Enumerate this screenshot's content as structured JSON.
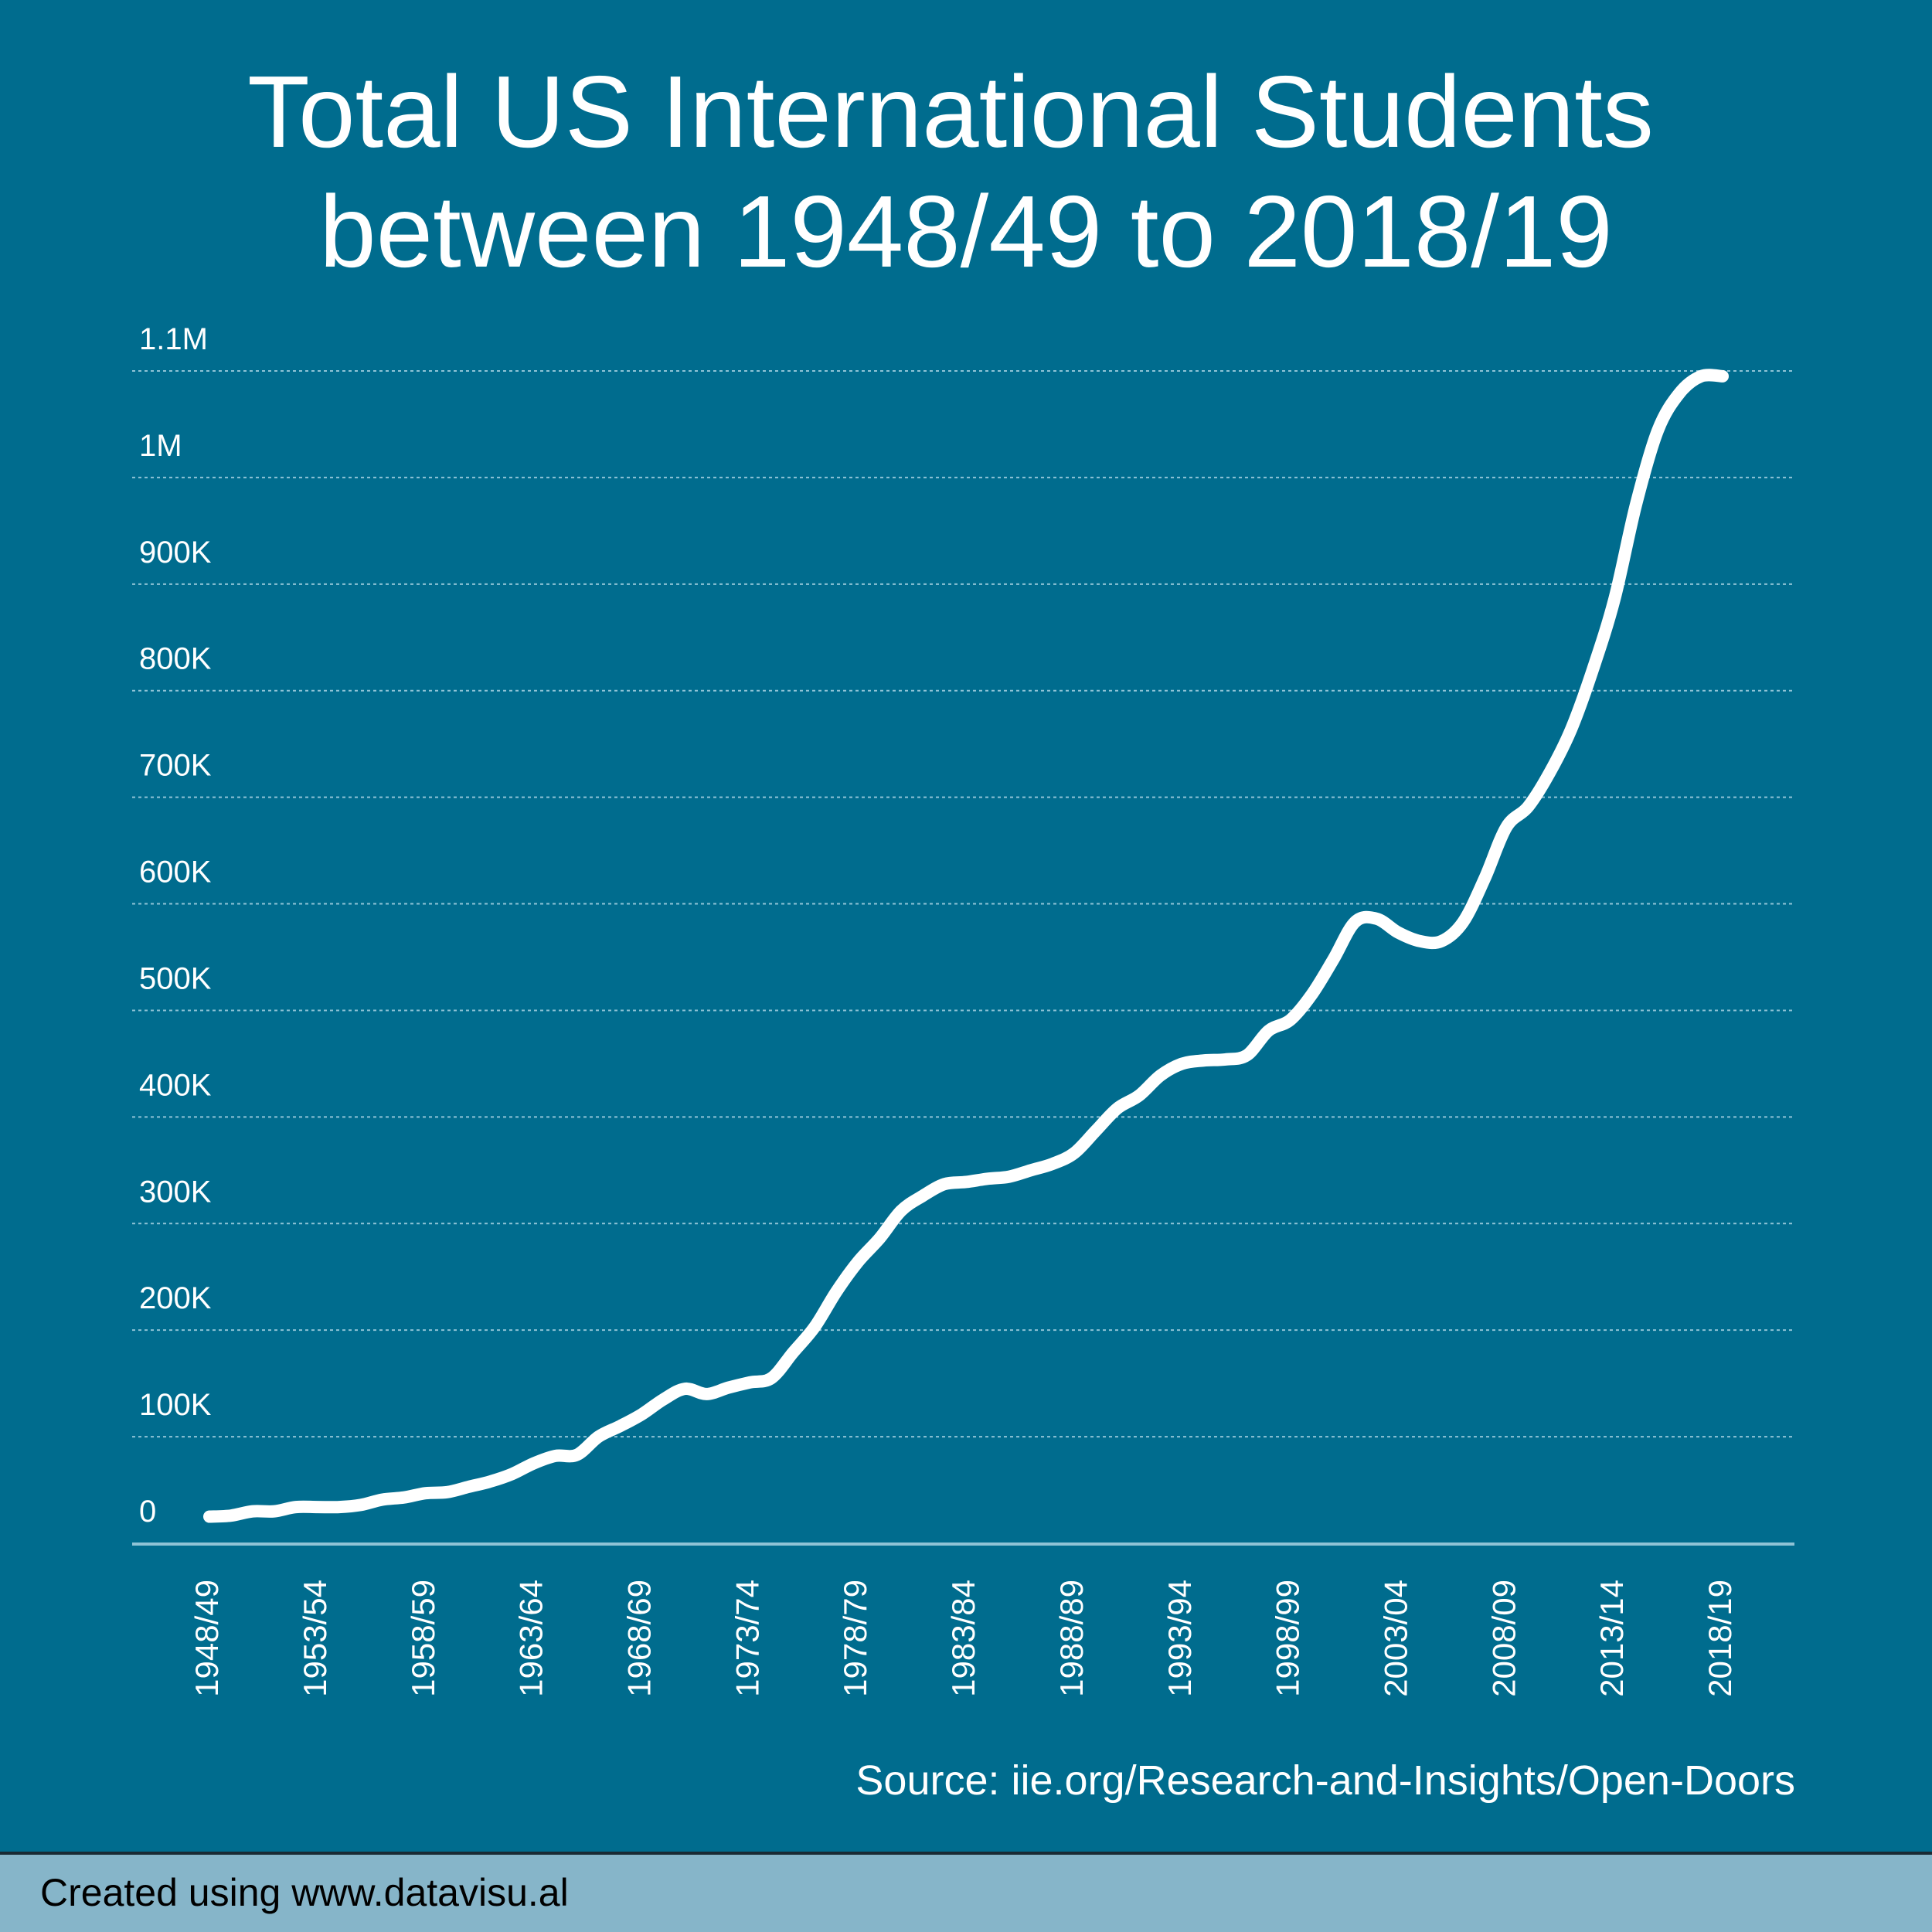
{
  "chart_data": {
    "type": "line",
    "title": "Total US International Students",
    "subtitle": "between 1948/49 to 2018/19",
    "source": "Source: iie.org/Research-and-Insights/Open-Doors",
    "footer": "Created using www.datavisu.al",
    "categories": [
      "1948/49",
      null,
      null,
      null,
      null,
      "1953/54",
      null,
      null,
      null,
      null,
      "1958/59",
      null,
      null,
      null,
      null,
      "1963/64",
      null,
      null,
      null,
      null,
      "1968/69",
      null,
      null,
      null,
      null,
      "1973/74",
      null,
      null,
      null,
      null,
      "1978/79",
      null,
      null,
      null,
      null,
      "1983/84",
      null,
      null,
      null,
      null,
      "1988/89",
      null,
      null,
      null,
      null,
      "1993/94",
      null,
      null,
      null,
      null,
      "1998/99",
      null,
      null,
      null,
      null,
      "2003/04",
      null,
      null,
      null,
      null,
      "2008/09",
      null,
      null,
      null,
      null,
      "2013/14",
      null,
      null,
      null,
      null,
      "2018/19"
    ],
    "values": [
      25000,
      26000,
      30000,
      30000,
      34000,
      34000,
      34000,
      36000,
      41000,
      43000,
      47000,
      48000,
      53000,
      58000,
      65000,
      75000,
      82000,
      83000,
      100000,
      110000,
      121000,
      135000,
      145000,
      140000,
      146000,
      151000,
      155000,
      179000,
      203000,
      236000,
      264000,
      286000,
      312000,
      326000,
      337000,
      339000,
      342000,
      344000,
      350000,
      356000,
      366000,
      387000,
      408000,
      420000,
      439000,
      450000,
      453000,
      454000,
      458000,
      481000,
      491000,
      515000,
      548000,
      583000,
      586000,
      573000,
      565000,
      565000,
      583000,
      624000,
      672000,
      691000,
      723000,
      764000,
      820000,
      886000,
      975000,
      1044000,
      1079000,
      1095000,
      1095000
    ],
    "color": "#ffffff",
    "ylim": [
      0,
      1100000
    ],
    "yticks": [
      0,
      {
        "value": 100000,
        "label": "100K"
      },
      {
        "value": 200000,
        "label": "200K"
      },
      {
        "value": 300000,
        "label": "300K"
      },
      {
        "value": 400000,
        "label": "400K"
      },
      {
        "value": 500000,
        "label": "500K"
      },
      {
        "value": 600000,
        "label": "600K"
      },
      {
        "value": 700000,
        "label": "700K"
      },
      {
        "value": 800000,
        "label": "800K"
      },
      {
        "value": 900000,
        "label": "900K"
      },
      {
        "value": 1000000,
        "label": "1M"
      },
      {
        "value": 1100000,
        "label": "1.1M"
      }
    ],
    "grid": true
  }
}
